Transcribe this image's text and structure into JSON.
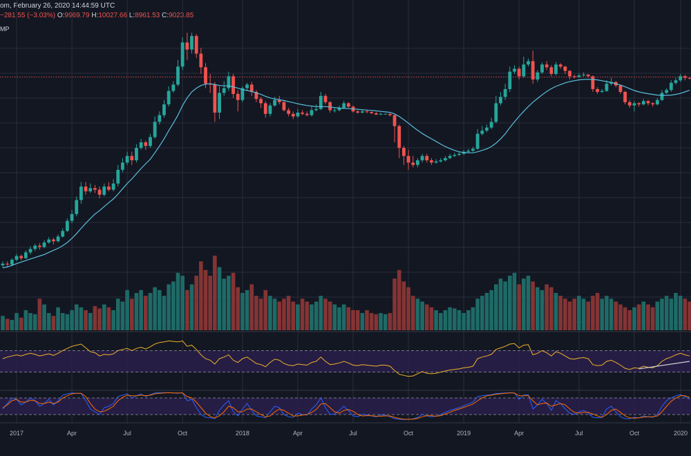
{
  "header": {
    "line1": "om, February 26, 2020 14:44:59 UTC",
    "change": "−281.55 (−3.03%)",
    "o_label": "O:",
    "o_value": "9969.79",
    "h_label": "H:",
    "h_value": "10027.66",
    "l_label": "L:",
    "l_value": "8961.53",
    "c_label": "C:",
    "c_value": "9023.85",
    "indicator": "MP"
  },
  "colors": {
    "background": "#131722",
    "up": "#26a69a",
    "down": "#ef5350",
    "ma": "#5bc0de",
    "rsi_band": "#2a1f4a",
    "rsi_line": "#f0b429",
    "stoch_k": "#2962ff",
    "stoch_d": "#ff6d00"
  },
  "chart_data": {
    "type": "candlestick",
    "x_ticks": [
      "2017",
      "Apr",
      "Jul",
      "Oct",
      "2018",
      "Apr",
      "Jul",
      "Oct",
      "2019",
      "Apr",
      "Jul",
      "Oct",
      "2020"
    ],
    "candles": [
      [
        0.98,
        1.0,
        0.95,
        1.03
      ],
      [
        1.0,
        0.99,
        0.96,
        1.03
      ],
      [
        0.99,
        1.05,
        0.97,
        1.07
      ],
      [
        1.05,
        1.1,
        1.03,
        1.13
      ],
      [
        1.1,
        1.07,
        1.04,
        1.12
      ],
      [
        1.07,
        1.15,
        1.06,
        1.18
      ],
      [
        1.15,
        1.2,
        1.12,
        1.24
      ],
      [
        1.2,
        1.25,
        1.17,
        1.28
      ],
      [
        1.25,
        1.23,
        1.19,
        1.29
      ],
      [
        1.23,
        1.3,
        1.21,
        1.34
      ],
      [
        1.3,
        1.35,
        1.28,
        1.39
      ],
      [
        1.35,
        1.32,
        1.27,
        1.38
      ],
      [
        1.32,
        1.4,
        1.3,
        1.44
      ],
      [
        1.4,
        1.5,
        1.38,
        1.55
      ],
      [
        1.5,
        1.7,
        1.48,
        1.75
      ],
      [
        1.7,
        1.85,
        1.65,
        1.95
      ],
      [
        1.85,
        2.2,
        1.8,
        2.3
      ],
      [
        2.2,
        2.6,
        2.1,
        2.75
      ],
      [
        2.6,
        2.45,
        2.35,
        2.75
      ],
      [
        2.45,
        2.55,
        2.4,
        2.7
      ],
      [
        2.55,
        2.5,
        2.4,
        2.65
      ],
      [
        2.5,
        2.35,
        2.25,
        2.6
      ],
      [
        2.35,
        2.6,
        2.3,
        2.7
      ],
      [
        2.6,
        2.5,
        2.45,
        2.75
      ],
      [
        2.5,
        2.7,
        2.45,
        2.85
      ],
      [
        2.7,
        3.2,
        2.6,
        3.4
      ],
      [
        3.2,
        3.5,
        3.1,
        3.7
      ],
      [
        3.5,
        3.8,
        3.4,
        4.0
      ],
      [
        3.8,
        3.6,
        3.4,
        4.0
      ],
      [
        3.6,
        4.2,
        3.5,
        4.4
      ],
      [
        4.2,
        4.5,
        4.1,
        4.7
      ],
      [
        4.5,
        4.3,
        4.1,
        4.6
      ],
      [
        4.3,
        4.8,
        4.2,
        5.0
      ],
      [
        4.8,
        5.8,
        4.7,
        6.2
      ],
      [
        5.8,
        6.3,
        5.6,
        6.6
      ],
      [
        6.3,
        7.2,
        6.1,
        7.6
      ],
      [
        7.2,
        8.5,
        7.0,
        9.0
      ],
      [
        8.5,
        9.2,
        8.3,
        9.6
      ],
      [
        9.2,
        11.5,
        9.0,
        12.5
      ],
      [
        11.5,
        15.5,
        11.0,
        16.5
      ],
      [
        15.5,
        14.2,
        12.5,
        17.5
      ],
      [
        14.2,
        16.8,
        13.5,
        17.5
      ],
      [
        16.8,
        13.5,
        12.8,
        17.2
      ],
      [
        13.5,
        11.4,
        10.5,
        14.5
      ],
      [
        11.4,
        9.3,
        8.8,
        12.0
      ],
      [
        9.3,
        9.2,
        8.3,
        10.5
      ],
      [
        9.2,
        6.5,
        5.8,
        9.5
      ],
      [
        6.5,
        8.3,
        6.0,
        9.0
      ],
      [
        8.3,
        8.8,
        8.0,
        9.6
      ],
      [
        8.8,
        10.2,
        8.5,
        10.8
      ],
      [
        10.2,
        8.2,
        7.8,
        10.5
      ],
      [
        8.2,
        7.6,
        6.6,
        8.6
      ],
      [
        7.6,
        8.8,
        7.4,
        9.0
      ],
      [
        8.8,
        9.2,
        8.5,
        9.4
      ],
      [
        9.2,
        8.4,
        8.0,
        9.5
      ],
      [
        8.4,
        7.7,
        7.4,
        8.6
      ],
      [
        7.7,
        7.3,
        6.9,
        7.9
      ],
      [
        7.3,
        6.4,
        6.1,
        7.5
      ],
      [
        6.4,
        7.1,
        6.2,
        7.3
      ],
      [
        7.1,
        7.6,
        7.0,
        7.9
      ],
      [
        7.6,
        7.4,
        7.2,
        8.0
      ],
      [
        7.4,
        6.7,
        6.6,
        7.6
      ],
      [
        6.7,
        6.4,
        6.2,
        6.9
      ],
      [
        6.4,
        6.2,
        6.0,
        6.6
      ],
      [
        6.2,
        6.5,
        6.1,
        6.8
      ],
      [
        6.5,
        6.4,
        6.3,
        6.7
      ],
      [
        6.4,
        6.3,
        6.2,
        6.6
      ],
      [
        6.3,
        6.7,
        6.2,
        7.0
      ],
      [
        6.7,
        6.8,
        6.6,
        7.2
      ],
      [
        6.8,
        8.0,
        6.7,
        8.4
      ],
      [
        8.0,
        7.4,
        7.2,
        8.2
      ],
      [
        7.4,
        6.7,
        6.5,
        7.5
      ],
      [
        6.7,
        6.7,
        6.5,
        6.9
      ],
      [
        6.7,
        6.9,
        6.6,
        7.1
      ],
      [
        6.9,
        7.3,
        6.8,
        7.5
      ],
      [
        7.3,
        7.0,
        6.9,
        7.4
      ],
      [
        7.0,
        6.6,
        6.5,
        7.1
      ],
      [
        6.6,
        6.5,
        6.4,
        6.7
      ],
      [
        6.5,
        6.6,
        6.45,
        6.75
      ],
      [
        6.6,
        6.55,
        6.45,
        6.7
      ],
      [
        6.55,
        6.45,
        6.4,
        6.6
      ],
      [
        6.45,
        6.35,
        6.3,
        6.55
      ],
      [
        6.35,
        6.4,
        6.3,
        6.5
      ],
      [
        6.4,
        6.4,
        6.35,
        6.45
      ],
      [
        6.4,
        6.3,
        6.2,
        6.45
      ],
      [
        6.3,
        5.5,
        4.5,
        6.35
      ],
      [
        5.5,
        4.2,
        3.7,
        5.6
      ],
      [
        4.2,
        3.8,
        3.4,
        4.3
      ],
      [
        3.8,
        3.5,
        3.2,
        4.1
      ],
      [
        3.5,
        3.4,
        3.3,
        3.8
      ],
      [
        3.4,
        3.6,
        3.3,
        3.7
      ],
      [
        3.6,
        3.8,
        3.5,
        3.9
      ],
      [
        3.8,
        3.6,
        3.5,
        3.9
      ],
      [
        3.6,
        3.5,
        3.4,
        3.7
      ],
      [
        3.5,
        3.55,
        3.45,
        3.65
      ],
      [
        3.55,
        3.6,
        3.5,
        3.7
      ],
      [
        3.6,
        3.7,
        3.55,
        3.8
      ],
      [
        3.7,
        3.8,
        3.65,
        3.9
      ],
      [
        3.8,
        3.85,
        3.75,
        3.95
      ],
      [
        3.85,
        3.9,
        3.8,
        4.0
      ],
      [
        3.9,
        4.0,
        3.85,
        4.1
      ],
      [
        4.0,
        4.05,
        3.95,
        4.15
      ],
      [
        4.05,
        4.15,
        4.0,
        4.25
      ],
      [
        4.15,
        5.0,
        4.1,
        5.3
      ],
      [
        5.0,
        5.2,
        4.9,
        5.5
      ],
      [
        5.2,
        5.4,
        5.1,
        5.6
      ],
      [
        5.4,
        5.8,
        5.3,
        6.1
      ],
      [
        5.8,
        7.3,
        5.7,
        8.0
      ],
      [
        7.3,
        7.9,
        7.1,
        8.4
      ],
      [
        7.9,
        8.7,
        7.6,
        9.3
      ],
      [
        8.7,
        10.8,
        8.4,
        11.5
      ],
      [
        10.8,
        11.2,
        10.5,
        11.7
      ],
      [
        11.2,
        10.2,
        9.8,
        11.5
      ],
      [
        10.2,
        11.8,
        10.0,
        13.0
      ],
      [
        11.8,
        12.3,
        11.5,
        12.7
      ],
      [
        12.3,
        9.8,
        9.3,
        14.0
      ],
      [
        9.8,
        10.7,
        9.5,
        11.0
      ],
      [
        10.7,
        11.8,
        10.5,
        12.1
      ],
      [
        11.8,
        11.4,
        11.0,
        12.3
      ],
      [
        11.4,
        10.5,
        10.2,
        11.7
      ],
      [
        10.5,
        11.8,
        10.3,
        12.2
      ],
      [
        11.8,
        11.5,
        11.2,
        12.0
      ],
      [
        11.5,
        10.9,
        10.5,
        11.6
      ],
      [
        10.9,
        10.2,
        9.8,
        11.0
      ],
      [
        10.2,
        10.1,
        9.9,
        10.4
      ],
      [
        10.1,
        10.3,
        10.0,
        10.6
      ],
      [
        10.3,
        10.4,
        10.2,
        10.7
      ],
      [
        10.4,
        10.2,
        10.0,
        10.5
      ],
      [
        10.2,
        8.7,
        8.4,
        10.3
      ],
      [
        8.7,
        8.4,
        8.2,
        8.9
      ],
      [
        8.4,
        8.5,
        8.3,
        8.7
      ],
      [
        8.5,
        9.3,
        8.4,
        9.7
      ],
      [
        9.3,
        9.5,
        9.1,
        10.0
      ],
      [
        9.5,
        9.1,
        8.9,
        9.6
      ],
      [
        9.1,
        8.4,
        8.2,
        9.2
      ],
      [
        8.4,
        7.4,
        7.2,
        8.5
      ],
      [
        7.4,
        7.1,
        6.9,
        7.6
      ],
      [
        7.1,
        7.3,
        6.6,
        7.5
      ],
      [
        7.3,
        7.2,
        7.0,
        7.4
      ],
      [
        7.2,
        7.5,
        7.1,
        7.7
      ],
      [
        7.5,
        7.3,
        7.1,
        7.6
      ],
      [
        7.3,
        7.2,
        7.0,
        7.4
      ],
      [
        7.2,
        7.6,
        7.1,
        7.8
      ],
      [
        7.6,
        8.3,
        7.5,
        8.6
      ],
      [
        8.3,
        8.6,
        8.2,
        8.8
      ],
      [
        8.6,
        9.4,
        8.4,
        9.7
      ],
      [
        9.4,
        9.7,
        9.2,
        10.0
      ],
      [
        9.7,
        10.2,
        9.5,
        10.5
      ],
      [
        10.2,
        10.0,
        9.7,
        10.4
      ],
      [
        10.0,
        9.9,
        9.8,
        10.1
      ]
    ],
    "ma": [
      0.95,
      0.96,
      0.98,
      1.0,
      1.02,
      1.04,
      1.06,
      1.08,
      1.1,
      1.12,
      1.15,
      1.18,
      1.21,
      1.25,
      1.3,
      1.37,
      1.45,
      1.55,
      1.65,
      1.75,
      1.85,
      1.93,
      2.03,
      2.13,
      2.23,
      2.37,
      2.53,
      2.7,
      2.86,
      3.05,
      3.25,
      3.45,
      3.65,
      3.95,
      4.3,
      4.7,
      5.2,
      5.7,
      6.3,
      7.1,
      7.8,
      8.4,
      8.8,
      9.1,
      9.25,
      9.3,
      9.2,
      9.1,
      9.05,
      9.05,
      8.95,
      8.8,
      8.65,
      8.55,
      8.45,
      8.3,
      8.15,
      7.95,
      7.8,
      7.7,
      7.62,
      7.55,
      7.45,
      7.35,
      7.25,
      7.17,
      7.1,
      7.05,
      7.0,
      7.0,
      7.0,
      6.97,
      6.92,
      6.88,
      6.85,
      6.83,
      6.8,
      6.77,
      6.74,
      6.71,
      6.68,
      6.64,
      6.6,
      6.56,
      6.52,
      6.4,
      6.2,
      5.95,
      5.7,
      5.45,
      5.22,
      5.02,
      4.85,
      4.7,
      4.55,
      4.4,
      4.27,
      4.16,
      4.07,
      4.0,
      3.97,
      3.95,
      3.95,
      4.0,
      4.07,
      4.15,
      4.27,
      4.45,
      4.7,
      5.0,
      5.4,
      5.8,
      6.2,
      6.6,
      7.0,
      7.4,
      7.75,
      8.1,
      8.45,
      8.75,
      9.0,
      9.2,
      9.4,
      9.55,
      9.65,
      9.75,
      9.8,
      9.82,
      9.8,
      9.75,
      9.65,
      9.55,
      9.45,
      9.3,
      9.15,
      8.95,
      8.75,
      8.55,
      8.4,
      8.3,
      8.22,
      8.15,
      8.08,
      8.05,
      8.05,
      8.08,
      8.15,
      8.25,
      8.4,
      8.58
    ],
    "volume": [
      0.25,
      0.2,
      0.18,
      0.3,
      0.22,
      0.35,
      0.3,
      0.28,
      0.55,
      0.45,
      0.3,
      0.25,
      0.4,
      0.3,
      0.28,
      0.35,
      0.45,
      0.4,
      0.35,
      0.3,
      0.42,
      0.38,
      0.45,
      0.4,
      0.35,
      0.55,
      0.5,
      0.7,
      0.55,
      0.65,
      0.7,
      0.6,
      0.65,
      0.75,
      0.7,
      0.6,
      0.8,
      0.85,
      1.0,
      0.95,
      0.7,
      0.8,
      0.95,
      1.2,
      1.05,
      0.95,
      1.3,
      1.1,
      0.9,
      0.95,
      1.0,
      0.75,
      0.65,
      0.7,
      0.8,
      0.6,
      0.55,
      0.7,
      0.6,
      0.55,
      0.5,
      0.55,
      0.6,
      0.5,
      0.45,
      0.55,
      0.5,
      0.45,
      0.5,
      0.6,
      0.55,
      0.5,
      0.45,
      0.4,
      0.45,
      0.4,
      0.35,
      0.35,
      0.3,
      0.35,
      0.3,
      0.28,
      0.3,
      0.28,
      0.3,
      0.9,
      1.05,
      0.85,
      0.75,
      0.6,
      0.55,
      0.5,
      0.45,
      0.4,
      0.35,
      0.3,
      0.35,
      0.4,
      0.38,
      0.35,
      0.3,
      0.35,
      0.4,
      0.55,
      0.6,
      0.65,
      0.7,
      0.8,
      0.9,
      0.85,
      0.95,
      1.0,
      0.8,
      0.9,
      0.95,
      0.85,
      0.75,
      0.7,
      0.8,
      0.75,
      0.65,
      0.6,
      0.55,
      0.5,
      0.55,
      0.6,
      0.55,
      0.5,
      0.6,
      0.65,
      0.55,
      0.6,
      0.55,
      0.5,
      0.45,
      0.4,
      0.35,
      0.4,
      0.45,
      0.5,
      0.45,
      0.4,
      0.5,
      0.55,
      0.6,
      0.55,
      0.65,
      0.6,
      0.55,
      0.5
    ],
    "rsi": [
      55,
      58,
      60,
      62,
      60,
      63,
      65,
      63,
      60,
      62,
      64,
      61,
      65,
      70,
      74,
      78,
      80,
      82,
      75,
      68,
      66,
      60,
      63,
      62,
      64,
      70,
      72,
      74,
      70,
      74,
      76,
      73,
      77,
      82,
      85,
      86,
      88,
      87,
      86,
      88,
      78,
      80,
      72,
      62,
      55,
      52,
      45,
      55,
      58,
      62,
      52,
      48,
      55,
      58,
      52,
      46,
      44,
      40,
      48,
      54,
      52,
      46,
      43,
      42,
      45,
      44,
      43,
      48,
      50,
      58,
      50,
      44,
      45,
      47,
      50,
      47,
      43,
      42,
      44,
      43,
      42,
      41,
      43,
      43,
      41,
      33,
      26,
      24,
      22,
      23,
      27,
      31,
      28,
      27,
      28,
      30,
      32,
      34,
      35,
      36,
      38,
      39,
      41,
      55,
      58,
      60,
      63,
      72,
      75,
      78,
      82,
      83,
      75,
      80,
      81,
      62,
      65,
      70,
      66,
      60,
      68,
      65,
      60,
      55,
      54,
      56,
      57,
      55,
      44,
      42,
      43,
      50,
      52,
      48,
      43,
      37,
      35,
      38,
      37,
      41,
      39,
      38,
      42,
      50,
      55,
      58,
      62,
      65,
      62,
      60
    ],
    "rsi_levels": [
      70,
      30
    ],
    "stoch_k": [
      40,
      60,
      80,
      75,
      55,
      65,
      80,
      70,
      50,
      60,
      75,
      55,
      70,
      90,
      95,
      98,
      97,
      96,
      70,
      40,
      30,
      20,
      45,
      50,
      60,
      85,
      90,
      95,
      80,
      88,
      95,
      85,
      92,
      98,
      99,
      99,
      99,
      98,
      97,
      99,
      70,
      75,
      45,
      20,
      10,
      8,
      5,
      35,
      55,
      70,
      30,
      15,
      40,
      60,
      35,
      15,
      12,
      8,
      30,
      50,
      45,
      20,
      12,
      10,
      25,
      20,
      18,
      40,
      55,
      80,
      45,
      20,
      22,
      35,
      50,
      35,
      15,
      12,
      20,
      18,
      15,
      12,
      18,
      18,
      12,
      5,
      3,
      2,
      3,
      4,
      10,
      20,
      15,
      12,
      14,
      20,
      28,
      35,
      40,
      45,
      52,
      58,
      65,
      85,
      88,
      90,
      92,
      96,
      97,
      98,
      99,
      98,
      75,
      90,
      92,
      40,
      55,
      75,
      60,
      35,
      70,
      60,
      40,
      25,
      20,
      30,
      35,
      25,
      10,
      8,
      10,
      40,
      50,
      30,
      12,
      5,
      5,
      10,
      8,
      15,
      12,
      10,
      20,
      50,
      70,
      80,
      88,
      92,
      85,
      75
    ],
    "stoch_d": [
      45,
      55,
      70,
      75,
      65,
      65,
      72,
      70,
      60,
      60,
      65,
      60,
      65,
      80,
      88,
      95,
      97,
      97,
      85,
      60,
      40,
      30,
      32,
      40,
      50,
      70,
      82,
      90,
      88,
      88,
      90,
      88,
      90,
      95,
      97,
      98,
      99,
      98,
      98,
      98,
      85,
      80,
      65,
      45,
      25,
      13,
      8,
      15,
      30,
      50,
      45,
      30,
      30,
      40,
      40,
      30,
      20,
      12,
      15,
      30,
      40,
      35,
      25,
      15,
      15,
      18,
      20,
      28,
      38,
      58,
      60,
      45,
      30,
      25,
      35,
      38,
      32,
      20,
      15,
      16,
      16,
      14,
      14,
      15,
      15,
      10,
      6,
      3,
      3,
      3,
      6,
      12,
      16,
      16,
      14,
      16,
      22,
      28,
      35,
      40,
      46,
      52,
      58,
      70,
      80,
      88,
      90,
      93,
      95,
      97,
      98,
      98,
      88,
      88,
      88,
      70,
      55,
      60,
      62,
      50,
      55,
      60,
      55,
      40,
      28,
      25,
      28,
      28,
      22,
      15,
      10,
      20,
      35,
      40,
      28,
      15,
      8,
      7,
      8,
      11,
      12,
      12,
      15,
      30,
      50,
      68,
      80,
      88,
      88,
      82
    ],
    "stoch_levels": [
      80,
      20
    ],
    "y_scale": "log"
  }
}
